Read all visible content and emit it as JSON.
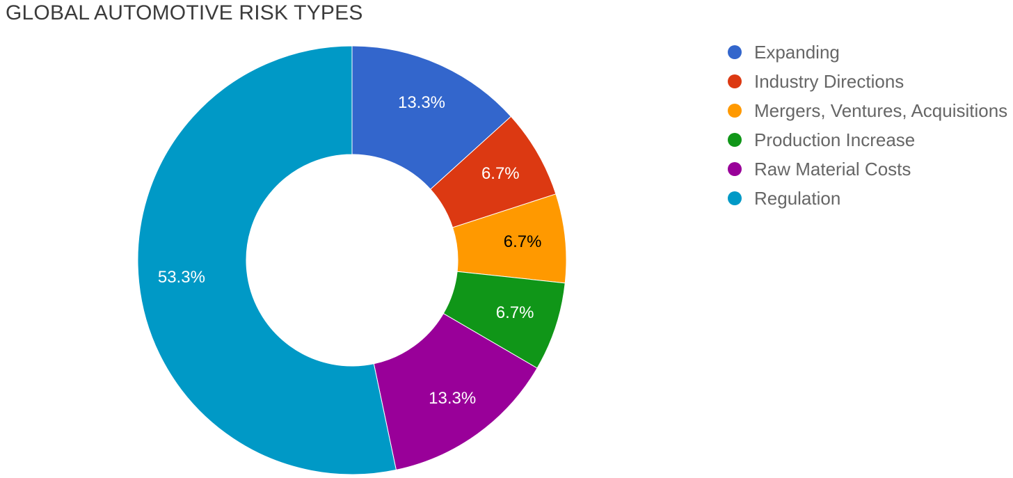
{
  "title": "GLOBAL AUTOMOTIVE RISK TYPES",
  "chart_data": {
    "type": "pie",
    "donut": true,
    "title": "GLOBAL AUTOMOTIVE RISK TYPES",
    "legend_position": "right",
    "start_angle_deg": 0,
    "direction": "clockwise",
    "categories": [
      "Expanding",
      "Industry Directions",
      "Mergers, Ventures, Acquisitions",
      "Production Increase",
      "Raw Material Costs",
      "Regulation"
    ],
    "values": [
      13.3,
      6.7,
      6.7,
      6.7,
      13.3,
      53.3
    ],
    "slice_labels": [
      "13.3%",
      "6.7%",
      "6.7%",
      "6.7%",
      "13.3%",
      "53.3%"
    ],
    "colors": [
      "#3366CC",
      "#DC3912",
      "#FF9900",
      "#109618",
      "#990099",
      "#0099C6"
    ],
    "label_colors": [
      "#ffffff",
      "#ffffff",
      "#000000",
      "#ffffff",
      "#ffffff",
      "#ffffff"
    ]
  }
}
